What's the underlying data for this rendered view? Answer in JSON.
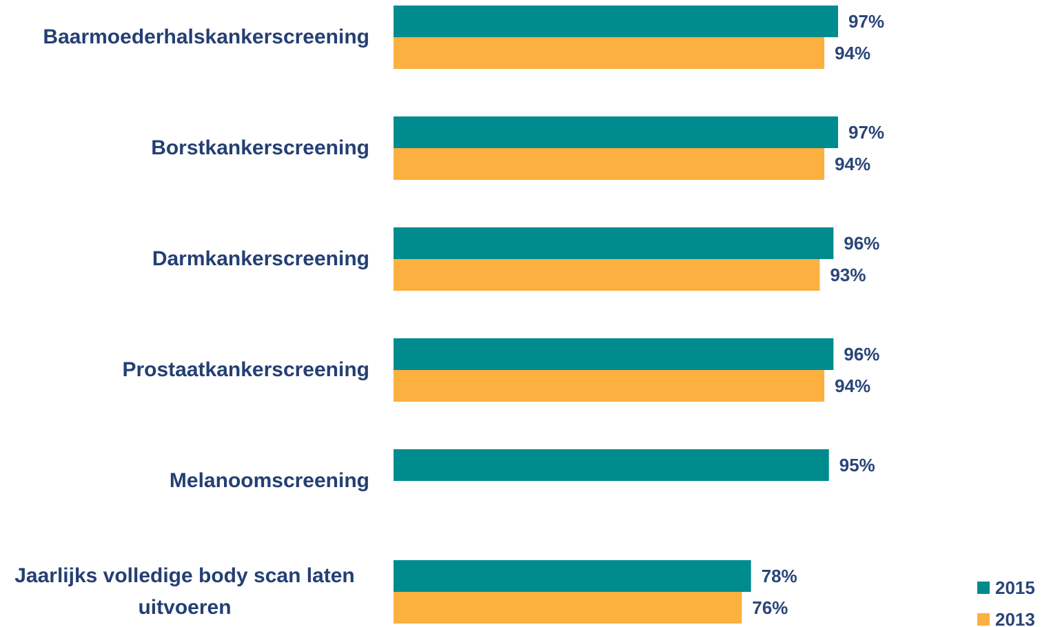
{
  "chart_data": {
    "type": "hbar",
    "categories": [
      "Baarmoederhalskankerscreening",
      "Borstkankerscreening",
      "Darmkankerscreening",
      "Prostaatkankerscreening",
      "Melanoomscreening",
      "Jaarlijks volledige body scan laten uitvoeren"
    ],
    "series": [
      {
        "name": "2015",
        "color": "#008c8f",
        "values": [
          97,
          97,
          96,
          96,
          95,
          78
        ],
        "value_labels": [
          "97%",
          "97%",
          "96%",
          "96%",
          "95%",
          "78%"
        ]
      },
      {
        "name": "2013",
        "color": "#fbb040",
        "values": [
          94,
          94,
          93,
          94,
          null,
          76
        ],
        "value_labels": [
          "94%",
          "94%",
          "93%",
          "94%",
          null,
          "76%"
        ]
      }
    ],
    "legend": "bottom-right"
  }
}
